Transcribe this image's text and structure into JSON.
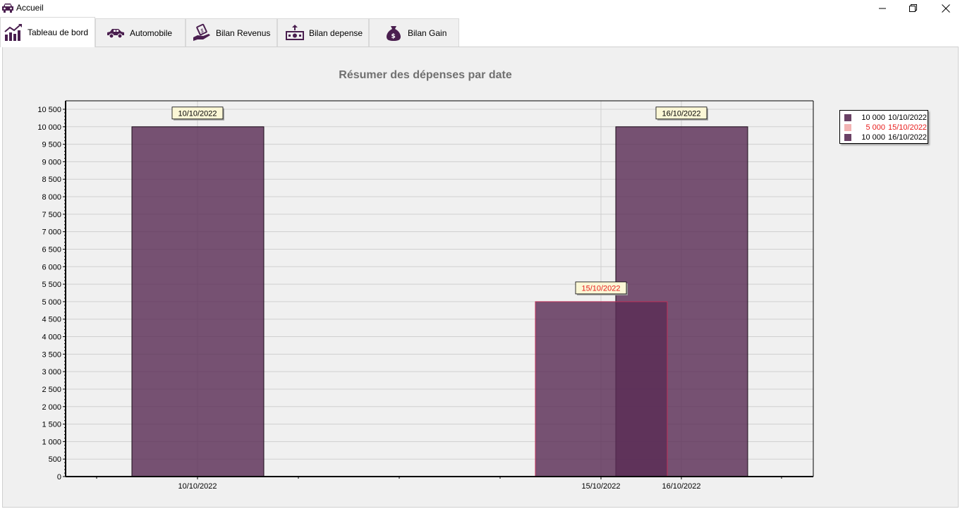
{
  "window": {
    "title": "Accueil",
    "controls": [
      "minimize-icon",
      "restore-icon",
      "close-icon"
    ]
  },
  "tabs": [
    {
      "label": "Tableau de bord",
      "icon": "chart-growth-icon",
      "active": true
    },
    {
      "label": "Automobile",
      "icon": "car-icon",
      "active": false
    },
    {
      "label": "Bilan Revenus",
      "icon": "hand-money-icon",
      "active": false
    },
    {
      "label": "Bilan depense",
      "icon": "cash-out-icon",
      "active": false
    },
    {
      "label": "Bilan Gain",
      "icon": "money-bag-icon",
      "active": false
    }
  ],
  "chart_data": {
    "type": "bar",
    "title": "Résumer des dépenses par date",
    "ylim": [
      0,
      10500
    ],
    "y_ticks": [
      "0",
      "500",
      "1 000",
      "1 500",
      "2 000",
      "2 500",
      "3 000",
      "3 500",
      "4 000",
      "4 500",
      "5 000",
      "5 500",
      "6 000",
      "6 500",
      "7 000",
      "7 500",
      "8 000",
      "8 500",
      "9 000",
      "9 500",
      "10 000",
      "10 500"
    ],
    "grid": true,
    "legend_placement": "right",
    "series": [
      {
        "name": "10/10/2022",
        "x": "10/10/2022",
        "value": 10000,
        "value_label": "10 000",
        "color": "#5a2d55",
        "label_color": "#000000"
      },
      {
        "name": "15/10/2022",
        "x": "15/10/2022",
        "value": 5000,
        "value_label": "5 000",
        "color": "#5a2d55",
        "label_color": "#e81c1c"
      },
      {
        "name": "16/10/2022",
        "x": "16/10/2022",
        "value": 10000,
        "value_label": "10 000",
        "color": "#5a2d55",
        "label_color": "#000000"
      }
    ],
    "x_tick_labels": [
      "10/10/2022",
      "15/10/2022",
      "16/10/2022"
    ]
  }
}
